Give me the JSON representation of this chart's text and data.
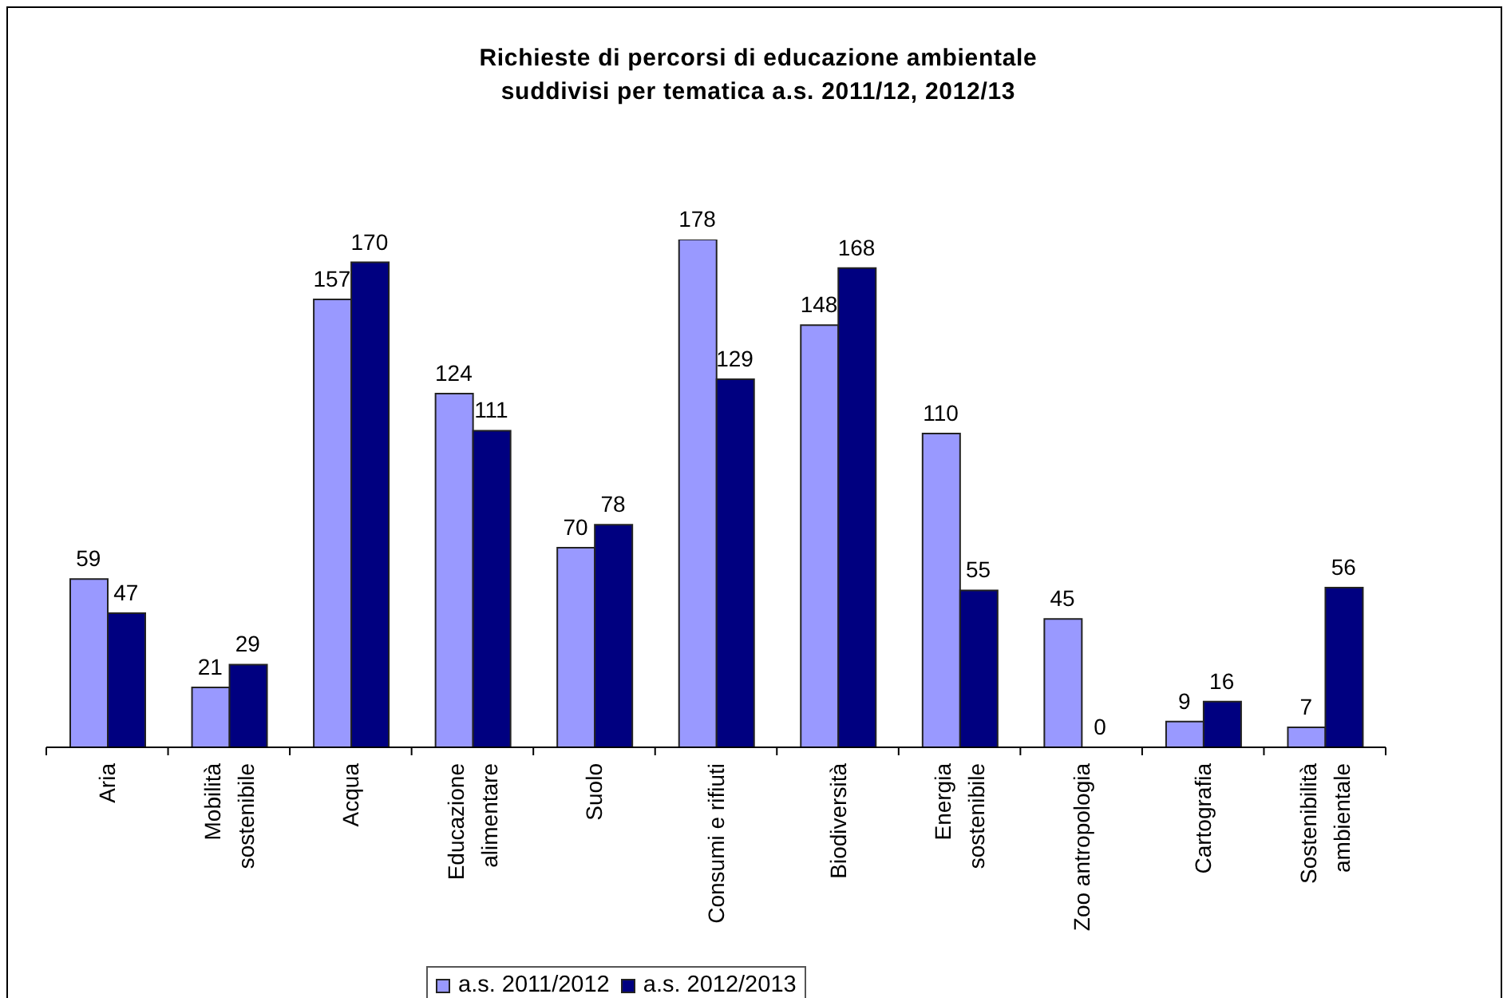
{
  "chart_data": {
    "type": "bar",
    "title": "Richieste di percorsi di educazione ambientale suddivisi per tematica a.s. 2011/12, 2012/13",
    "categories": [
      "Aria",
      "Mobilità sostenibile",
      "Acqua",
      "Educazione alimentare",
      "Suolo",
      "Consumi e rifiuti",
      "Biodiversità",
      "Energia sostenibile",
      "Zoo antropologia",
      "Cartografia",
      "Sostenibilità ambientale"
    ],
    "series": [
      {
        "name": "a.s. 2011/2012",
        "color": "#9999ff",
        "values": [
          59,
          21,
          157,
          124,
          70,
          178,
          148,
          110,
          45,
          9,
          7
        ]
      },
      {
        "name": "a.s. 2012/2013",
        "color": "#000080",
        "values": [
          47,
          29,
          170,
          111,
          78,
          129,
          168,
          55,
          0,
          16,
          56
        ]
      }
    ],
    "data_labels": true,
    "legend": "bottom",
    "tick_labels": "x"
  }
}
